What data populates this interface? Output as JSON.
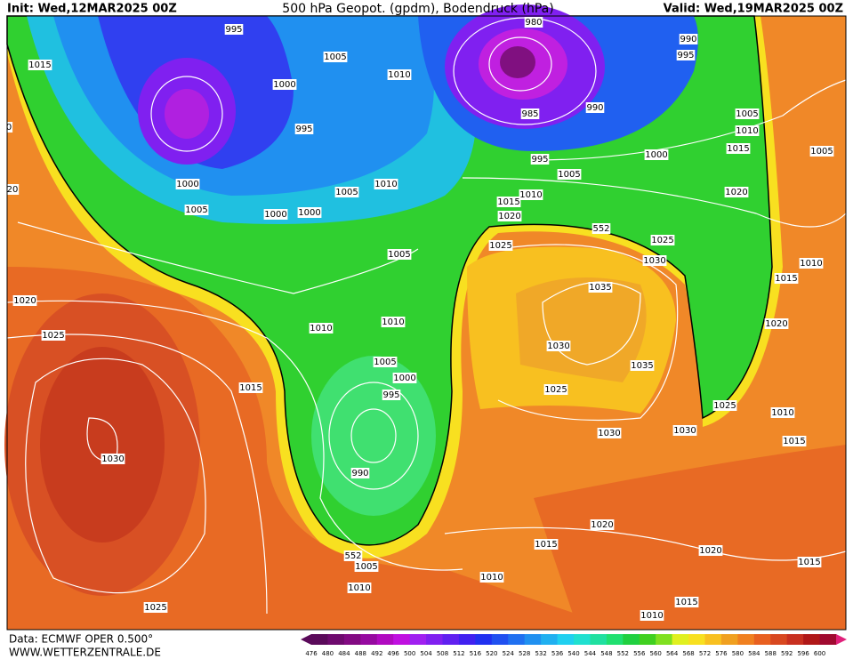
{
  "header": {
    "init": "Init: Wed,12MAR2025 00Z",
    "title": "500 hPa Geopot. (gpdm), Bodendruck (hPa)",
    "valid": "Valid: Wed,19MAR2025 00Z"
  },
  "isobars": {
    "labels": [
      995,
      1015,
      1005,
      1010,
      1000,
      995,
      1000,
      1005,
      1005,
      1010,
      1000,
      1000,
      1005,
      980,
      990,
      995,
      985,
      990,
      1005,
      1010,
      1015,
      1000,
      995,
      1005,
      1010,
      1015,
      1020,
      1020,
      1005,
      1025,
      1025,
      1030,
      1035,
      1010,
      1015,
      1020,
      1020,
      1025,
      1010,
      1010,
      1030,
      1035,
      1005,
      1000,
      995,
      1025,
      1015,
      1030,
      990,
      1025,
      1010,
      1030,
      1030,
      1015,
      1020,
      1015,
      1020,
      1015,
      1005,
      1010,
      1010,
      1015,
      1010,
      1025,
      0,
      20
    ]
  },
  "geopotential": {
    "labels": [
      552,
      552
    ]
  },
  "colorbar": {
    "labels": [
      476,
      480,
      484,
      488,
      492,
      496,
      500,
      504,
      508,
      512,
      516,
      520,
      524,
      528,
      532,
      536,
      540,
      544,
      548,
      552,
      556,
      560,
      564,
      568,
      572,
      576,
      580,
      584,
      588,
      592,
      596,
      600
    ],
    "colors": [
      "#5a0a5a",
      "#6e0a6e",
      "#820a82",
      "#960aa0",
      "#b00ac0",
      "#c010e0",
      "#a020f0",
      "#8020f0",
      "#6020f0",
      "#4020f0",
      "#2030f0",
      "#2050f0",
      "#2070f0",
      "#2090f0",
      "#20b0f0",
      "#20d0f0",
      "#20e0d0",
      "#20e0a0",
      "#20e070",
      "#20d040",
      "#40d020",
      "#80e020",
      "#e0f020",
      "#f8e020",
      "#f8c020",
      "#f0a020",
      "#f08020",
      "#e86020",
      "#d84820",
      "#c83020",
      "#b01818",
      "#a00a30"
    ]
  },
  "footer": {
    "data": "Data: ECMWF OPER 0.500°",
    "site": "WWW.WETTERZENTRALE.DE"
  }
}
